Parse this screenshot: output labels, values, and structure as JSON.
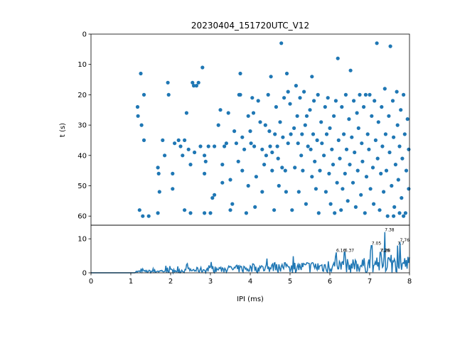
{
  "figure_title": "20230404_151720UTC_V12",
  "colors": {
    "series": "#1f77b4",
    "axes": "#000000",
    "background": "#ffffff"
  },
  "chart_data": [
    {
      "type": "scatter",
      "title": "20230404_151720UTC_V12",
      "xlabel": "",
      "ylabel": "t (s)",
      "xlim": [
        0,
        8
      ],
      "ylim": [
        0,
        63
      ],
      "y_inverted": true,
      "yticks": [
        "0",
        "10",
        "20",
        "30",
        "40",
        "50",
        "60"
      ],
      "grid": false,
      "points": [
        [
          1.17,
          24
        ],
        [
          1.18,
          27
        ],
        [
          1.25,
          13
        ],
        [
          1.27,
          30
        ],
        [
          1.33,
          20
        ],
        [
          1.33,
          35
        ],
        [
          1.22,
          58
        ],
        [
          1.3,
          60
        ],
        [
          1.45,
          60
        ],
        [
          1.68,
          44
        ],
        [
          1.7,
          46
        ],
        [
          1.72,
          52
        ],
        [
          1.8,
          35
        ],
        [
          1.85,
          40
        ],
        [
          1.68,
          59
        ],
        [
          1.93,
          16
        ],
        [
          1.95,
          20
        ],
        [
          2.05,
          46
        ],
        [
          2.1,
          36
        ],
        [
          2.05,
          51
        ],
        [
          2.2,
          35
        ],
        [
          2.25,
          37
        ],
        [
          2.3,
          40
        ],
        [
          2.35,
          35
        ],
        [
          2.4,
          26
        ],
        [
          2.45,
          38
        ],
        [
          2.5,
          43
        ],
        [
          2.55,
          16
        ],
        [
          2.58,
          17
        ],
        [
          2.6,
          39
        ],
        [
          2.65,
          17
        ],
        [
          2.7,
          16
        ],
        [
          2.75,
          37
        ],
        [
          2.8,
          11
        ],
        [
          2.85,
          40
        ],
        [
          2.85,
          46
        ],
        [
          2.88,
          42
        ],
        [
          2.95,
          37
        ],
        [
          2.35,
          58
        ],
        [
          2.5,
          59
        ],
        [
          2.85,
          59
        ],
        [
          3.0,
          59
        ],
        [
          3.05,
          54
        ],
        [
          3.1,
          53
        ],
        [
          3.1,
          37
        ],
        [
          3.2,
          30
        ],
        [
          3.25,
          25
        ],
        [
          3.3,
          43
        ],
        [
          3.3,
          49
        ],
        [
          3.35,
          37
        ],
        [
          3.4,
          36
        ],
        [
          3.45,
          26
        ],
        [
          3.5,
          48
        ],
        [
          3.5,
          58
        ],
        [
          3.55,
          56
        ],
        [
          3.6,
          32
        ],
        [
          3.65,
          36
        ],
        [
          3.7,
          42
        ],
        [
          3.72,
          20
        ],
        [
          3.75,
          13
        ],
        [
          3.75,
          20
        ],
        [
          3.8,
          34
        ],
        [
          3.8,
          45
        ],
        [
          3.85,
          38
        ],
        [
          3.9,
          59
        ],
        [
          3.95,
          27
        ],
        [
          3.95,
          50
        ],
        [
          4.0,
          32
        ],
        [
          4.02,
          36
        ],
        [
          4.05,
          21
        ],
        [
          4.08,
          26
        ],
        [
          4.1,
          37
        ],
        [
          4.12,
          57
        ],
        [
          4.15,
          47
        ],
        [
          4.2,
          22
        ],
        [
          4.25,
          29
        ],
        [
          4.3,
          38
        ],
        [
          4.3,
          52
        ],
        [
          4.35,
          43
        ],
        [
          4.38,
          30
        ],
        [
          4.4,
          40
        ],
        [
          4.45,
          20
        ],
        [
          4.48,
          32
        ],
        [
          4.5,
          37
        ],
        [
          4.52,
          14
        ],
        [
          4.55,
          39
        ],
        [
          4.55,
          45
        ],
        [
          4.6,
          58
        ],
        [
          4.62,
          33
        ],
        [
          4.65,
          24
        ],
        [
          4.68,
          37
        ],
        [
          4.7,
          41
        ],
        [
          4.72,
          50
        ],
        [
          4.75,
          29
        ],
        [
          4.78,
          3
        ],
        [
          4.8,
          44
        ],
        [
          4.82,
          34
        ],
        [
          4.85,
          21
        ],
        [
          4.88,
          45
        ],
        [
          4.9,
          52
        ],
        [
          4.92,
          13
        ],
        [
          4.95,
          19
        ],
        [
          4.95,
          36
        ],
        [
          5.0,
          23
        ],
        [
          5.02,
          33
        ],
        [
          5.05,
          58
        ],
        [
          5.1,
          31
        ],
        [
          5.12,
          44
        ],
        [
          5.15,
          17
        ],
        [
          5.18,
          27
        ],
        [
          5.2,
          36
        ],
        [
          5.22,
          52
        ],
        [
          5.25,
          21
        ],
        [
          5.28,
          40
        ],
        [
          5.3,
          33
        ],
        [
          5.32,
          45
        ],
        [
          5.35,
          19
        ],
        [
          5.38,
          30
        ],
        [
          5.4,
          56
        ],
        [
          5.42,
          27
        ],
        [
          5.45,
          37
        ],
        [
          5.5,
          25
        ],
        [
          5.52,
          38
        ],
        [
          5.55,
          14
        ],
        [
          5.55,
          47
        ],
        [
          5.58,
          33
        ],
        [
          5.6,
          22
        ],
        [
          5.62,
          42
        ],
        [
          5.65,
          51
        ],
        [
          5.68,
          35
        ],
        [
          5.7,
          20
        ],
        [
          5.72,
          59
        ],
        [
          5.75,
          45
        ],
        [
          5.78,
          29
        ],
        [
          5.8,
          36
        ],
        [
          5.85,
          40
        ],
        [
          5.88,
          24
        ],
        [
          5.9,
          52
        ],
        [
          5.92,
          33
        ],
        [
          5.95,
          21
        ],
        [
          5.98,
          46
        ],
        [
          6.0,
          31
        ],
        [
          6.02,
          56
        ],
        [
          6.05,
          38
        ],
        [
          6.08,
          43
        ],
        [
          6.1,
          27
        ],
        [
          6.12,
          59
        ],
        [
          6.15,
          22
        ],
        [
          6.18,
          49
        ],
        [
          6.2,
          8
        ],
        [
          6.22,
          35
        ],
        [
          6.25,
          41
        ],
        [
          6.28,
          58
        ],
        [
          6.3,
          24
        ],
        [
          6.32,
          51
        ],
        [
          6.35,
          33
        ],
        [
          6.38,
          46
        ],
        [
          6.4,
          20
        ],
        [
          6.42,
          38
        ],
        [
          6.45,
          55
        ],
        [
          6.48,
          28
        ],
        [
          6.5,
          43
        ],
        [
          6.52,
          12
        ],
        [
          6.55,
          34
        ],
        [
          6.58,
          49
        ],
        [
          6.6,
          22
        ],
        [
          6.62,
          39
        ],
        [
          6.65,
          57
        ],
        [
          6.68,
          26
        ],
        [
          6.7,
          45
        ],
        [
          6.72,
          31
        ],
        [
          6.75,
          20
        ],
        [
          6.78,
          53
        ],
        [
          6.8,
          36
        ],
        [
          6.82,
          42
        ],
        [
          6.85,
          24
        ],
        [
          6.88,
          59
        ],
        [
          6.9,
          20
        ],
        [
          6.92,
          47
        ],
        [
          6.95,
          33
        ],
        [
          6.98,
          38
        ],
        [
          7.0,
          20
        ],
        [
          7.02,
          51
        ],
        [
          7.05,
          27
        ],
        [
          7.08,
          44
        ],
        [
          7.1,
          56
        ],
        [
          7.12,
          22
        ],
        [
          7.15,
          35
        ],
        [
          7.18,
          3
        ],
        [
          7.2,
          41
        ],
        [
          7.22,
          29
        ],
        [
          7.25,
          58
        ],
        [
          7.28,
          46
        ],
        [
          7.3,
          24
        ],
        [
          7.32,
          37
        ],
        [
          7.35,
          52
        ],
        [
          7.38,
          18
        ],
        [
          7.4,
          33
        ],
        [
          7.42,
          45
        ],
        [
          7.45,
          60
        ],
        [
          7.48,
          27
        ],
        [
          7.5,
          39
        ],
        [
          7.52,
          4
        ],
        [
          7.55,
          50
        ],
        [
          7.58,
          22
        ],
        [
          7.6,
          34
        ],
        [
          7.62,
          57
        ],
        [
          7.65,
          43
        ],
        [
          7.68,
          19
        ],
        [
          7.7,
          30
        ],
        [
          7.72,
          48
        ],
        [
          7.75,
          37
        ],
        [
          7.78,
          25
        ],
        [
          7.8,
          54
        ],
        [
          7.82,
          41
        ],
        [
          7.85,
          20
        ],
        [
          7.88,
          33
        ],
        [
          7.9,
          59
        ],
        [
          7.92,
          45
        ],
        [
          7.95,
          28
        ],
        [
          7.98,
          38
        ],
        [
          7.98,
          51
        ],
        [
          7.6,
          60
        ],
        [
          7.85,
          60
        ],
        [
          7.75,
          59
        ]
      ]
    },
    {
      "type": "line",
      "title": "",
      "xlabel": "IPI (ms)",
      "ylabel": "",
      "xlim": [
        0,
        8
      ],
      "ylim": [
        0,
        14
      ],
      "xticks": [
        "0",
        "1",
        "2",
        "3",
        "4",
        "5",
        "6",
        "7",
        "8"
      ],
      "yticks": [
        "0",
        "10"
      ],
      "grid": false,
      "peaks": [
        {
          "x": 6.16,
          "y": 6,
          "label": "6.16"
        },
        {
          "x": 6.37,
          "y": 6,
          "label": "6.37"
        },
        {
          "x": 7.05,
          "y": 8,
          "label": "7.05"
        },
        {
          "x": 7.26,
          "y": 6,
          "label": "7.26"
        },
        {
          "x": 7.28,
          "y": 6,
          "label": "7.28"
        },
        {
          "x": 7.38,
          "y": 12,
          "label": "7.38"
        },
        {
          "x": 7.7,
          "y": 8,
          "label": "7.7"
        },
        {
          "x": 7.76,
          "y": 9,
          "label": "7.76"
        }
      ]
    }
  ]
}
